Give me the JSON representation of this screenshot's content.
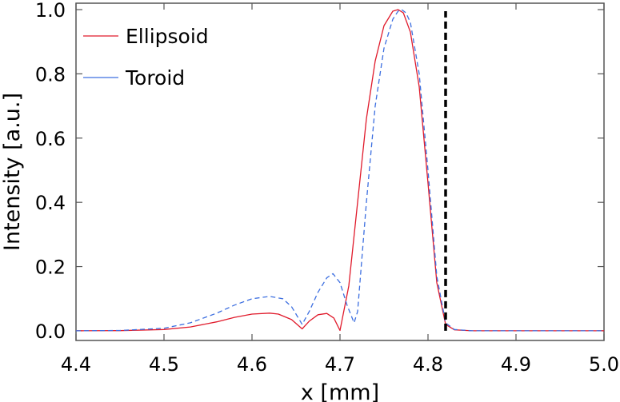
{
  "chart_data": {
    "type": "line",
    "xlabel": "x [mm]",
    "ylabel": "Intensity [a.u.]",
    "xlim": [
      4.4,
      5.0
    ],
    "ylim": [
      -0.03,
      1.02
    ],
    "xticks": [
      4.4,
      4.5,
      4.6,
      4.7,
      4.8,
      4.9,
      5.0
    ],
    "xtick_labels": [
      "4.4",
      "4.5",
      "4.6",
      "4.7",
      "4.8",
      "4.9",
      "5.0"
    ],
    "yticks": [
      0.0,
      0.2,
      0.4,
      0.6,
      0.8,
      1.0
    ],
    "ytick_labels": [
      "0.0",
      "0.2",
      "0.4",
      "0.6",
      "0.8",
      "1.0"
    ],
    "grid": false,
    "legend_position": "top-left",
    "series": [
      {
        "name": "Ellipsoid",
        "color": "#e01a2b",
        "style": "solid",
        "x": [
          4.4,
          4.45,
          4.5,
          4.53,
          4.56,
          4.58,
          4.6,
          4.62,
          4.63,
          4.645,
          4.657,
          4.665,
          4.675,
          4.685,
          4.693,
          4.7,
          4.71,
          4.72,
          4.73,
          4.74,
          4.75,
          4.76,
          4.766,
          4.772,
          4.78,
          4.79,
          4.8,
          4.81,
          4.82,
          4.83,
          4.85,
          4.9,
          5.0
        ],
        "y": [
          0.0,
          0.0005,
          0.004,
          0.012,
          0.028,
          0.042,
          0.052,
          0.055,
          0.052,
          0.035,
          0.006,
          0.03,
          0.05,
          0.054,
          0.04,
          0.001,
          0.14,
          0.4,
          0.66,
          0.84,
          0.95,
          0.995,
          1.0,
          0.99,
          0.93,
          0.76,
          0.46,
          0.15,
          0.02,
          0.003,
          0.0,
          0.0,
          0.0
        ]
      },
      {
        "name": "Toroid",
        "color": "#3d6fe0",
        "style": "dashed",
        "x": [
          4.4,
          4.45,
          4.5,
          4.53,
          4.56,
          4.58,
          4.6,
          4.62,
          4.635,
          4.645,
          4.657,
          4.665,
          4.675,
          4.685,
          4.692,
          4.7,
          4.708,
          4.716,
          4.72,
          4.73,
          4.74,
          4.75,
          4.76,
          4.766,
          4.77,
          4.775,
          4.78,
          4.79,
          4.8,
          4.81,
          4.82,
          4.83,
          4.85,
          4.9,
          5.0
        ],
        "y": [
          0.0,
          0.001,
          0.008,
          0.025,
          0.055,
          0.08,
          0.1,
          0.107,
          0.1,
          0.075,
          0.02,
          0.06,
          0.12,
          0.165,
          0.178,
          0.15,
          0.08,
          0.025,
          0.06,
          0.4,
          0.7,
          0.88,
          0.97,
          0.995,
          1.0,
          0.99,
          0.96,
          0.8,
          0.5,
          0.17,
          0.025,
          0.004,
          0.0,
          0.0,
          0.0
        ]
      },
      {
        "name": "",
        "color": "#000000",
        "style": "dashed-vertical",
        "x": [
          4.82,
          4.82
        ],
        "y": [
          0.0,
          0.995
        ]
      }
    ]
  }
}
